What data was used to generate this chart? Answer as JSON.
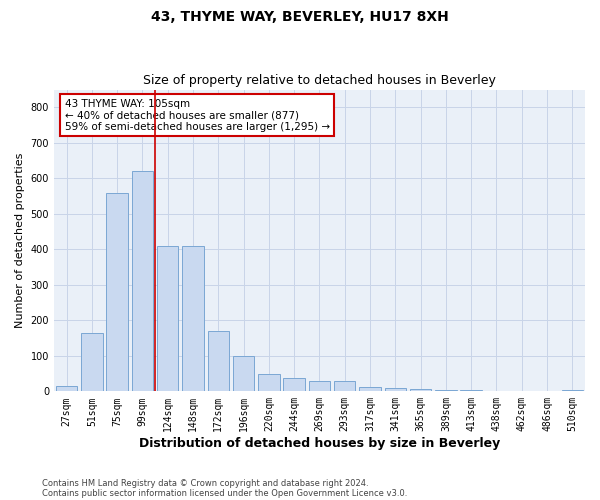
{
  "title": "43, THYME WAY, BEVERLEY, HU17 8XH",
  "subtitle": "Size of property relative to detached houses in Beverley",
  "xlabel": "Distribution of detached houses by size in Beverley",
  "ylabel": "Number of detached properties",
  "categories": [
    "27sqm",
    "51sqm",
    "75sqm",
    "99sqm",
    "124sqm",
    "148sqm",
    "172sqm",
    "196sqm",
    "220sqm",
    "244sqm",
    "269sqm",
    "293sqm",
    "317sqm",
    "341sqm",
    "365sqm",
    "389sqm",
    "413sqm",
    "438sqm",
    "462sqm",
    "486sqm",
    "510sqm"
  ],
  "values": [
    15,
    165,
    560,
    620,
    410,
    410,
    170,
    100,
    50,
    38,
    28,
    28,
    12,
    10,
    7,
    5,
    5,
    0,
    0,
    0,
    5
  ],
  "bar_color": "#c9d9f0",
  "bar_edge_color": "#7ba7d4",
  "vline_x": 3.5,
  "vline_color": "#cc0000",
  "annotation_text": "43 THYME WAY: 105sqm\n← 40% of detached houses are smaller (877)\n59% of semi-detached houses are larger (1,295) →",
  "annotation_box_color": "#ffffff",
  "annotation_box_edge": "#cc0000",
  "ylim": [
    0,
    850
  ],
  "yticks": [
    0,
    100,
    200,
    300,
    400,
    500,
    600,
    700,
    800
  ],
  "grid_color": "#c8d4e8",
  "background_color": "#eaf0f8",
  "footer_line1": "Contains HM Land Registry data © Crown copyright and database right 2024.",
  "footer_line2": "Contains public sector information licensed under the Open Government Licence v3.0.",
  "title_fontsize": 10,
  "subtitle_fontsize": 9,
  "xlabel_fontsize": 9,
  "ylabel_fontsize": 8,
  "tick_fontsize": 7,
  "annotation_fontsize": 7.5,
  "footer_fontsize": 6
}
